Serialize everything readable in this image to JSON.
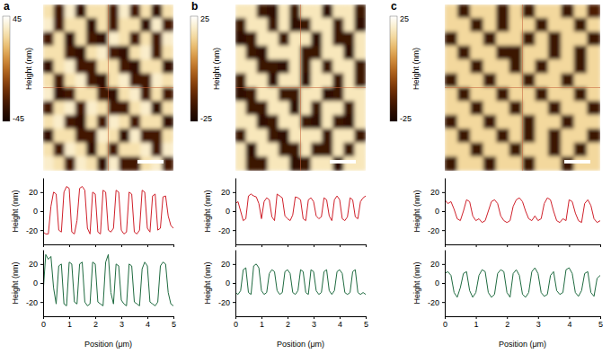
{
  "chart_data": [
    {
      "type": "heatmap",
      "title": "a",
      "color_label": "Height (nm)",
      "color_range": [
        -45,
        45
      ],
      "color_ticks": [
        45,
        -45
      ],
      "cells": [
        [
          30,
          -30,
          35,
          -35,
          30,
          30,
          -30,
          35,
          -30,
          30,
          -35,
          30
        ],
        [
          35,
          -30,
          30,
          30,
          -35,
          30,
          -30,
          30,
          30,
          -35,
          35,
          -30
        ],
        [
          -30,
          30,
          -35,
          30,
          -30,
          -35,
          35,
          30,
          -30,
          30,
          -30,
          35
        ],
        [
          30,
          30,
          -30,
          -35,
          30,
          35,
          -30,
          -35,
          30,
          35,
          -30,
          30
        ],
        [
          -35,
          30,
          35,
          -30,
          -30,
          30,
          30,
          -30,
          -35,
          30,
          30,
          -35
        ],
        [
          30,
          -30,
          30,
          35,
          -30,
          -35,
          30,
          35,
          -30,
          -30,
          35,
          30
        ],
        [
          35,
          -35,
          -30,
          30,
          30,
          -30,
          -35,
          30,
          35,
          -30,
          30,
          -30
        ],
        [
          -30,
          30,
          35,
          -30,
          35,
          30,
          -30,
          -30,
          30,
          35,
          -35,
          30
        ],
        [
          30,
          35,
          -30,
          -35,
          30,
          -30,
          35,
          30,
          -30,
          30,
          30,
          -35
        ],
        [
          -35,
          30,
          30,
          -30,
          -30,
          35,
          30,
          -35,
          35,
          -30,
          -30,
          30
        ],
        [
          30,
          -30,
          35,
          30,
          -35,
          30,
          -30,
          30,
          30,
          35,
          -30,
          35
        ],
        [
          35,
          30,
          -30,
          35,
          30,
          -35,
          35,
          -30,
          -30,
          30,
          35,
          -30
        ]
      ]
    },
    {
      "type": "line",
      "xlabel": "Position (μm)",
      "ylabel": "Height (nm)",
      "xlim": [
        0,
        5
      ],
      "xticks": [
        0,
        1,
        2,
        3,
        4,
        5
      ],
      "ylim": [
        -35,
        35
      ],
      "yticks": [
        -20,
        0,
        20
      ],
      "x": [
        0,
        0.1,
        0.2,
        0.3,
        0.4,
        0.5,
        0.6,
        0.7,
        0.8,
        0.9,
        1,
        1.1,
        1.2,
        1.3,
        1.4,
        1.5,
        1.6,
        1.7,
        1.8,
        1.9,
        2,
        2.1,
        2.2,
        2.3,
        2.4,
        2.5,
        2.6,
        2.7,
        2.8,
        2.9,
        3,
        3.1,
        3.2,
        3.3,
        3.4,
        3.5,
        3.6,
        3.7,
        3.8,
        3.9,
        4,
        4.1,
        4.2,
        4.3,
        4.4,
        4.5,
        4.6,
        4.7,
        4.8,
        4.9,
        5
      ],
      "series": [
        {
          "color": "#d0202a",
          "values": [
            -22,
            -24,
            -24,
            5,
            20,
            18,
            -20,
            -22,
            20,
            26,
            24,
            -22,
            -24,
            -10,
            24,
            26,
            22,
            -18,
            -24,
            20,
            18,
            -22,
            -24,
            22,
            20,
            -20,
            -22,
            -18,
            22,
            20,
            -20,
            -24,
            -22,
            20,
            18,
            -22,
            -24,
            -20,
            22,
            20,
            -18,
            -22,
            16,
            18,
            -20,
            -18,
            15,
            16,
            -5,
            -15,
            -18
          ]
        },
        {
          "color": "#1f6b40",
          "values": [
            -10,
            30,
            25,
            28,
            -5,
            -22,
            18,
            20,
            -22,
            -24,
            22,
            20,
            -20,
            -22,
            20,
            22,
            -20,
            -24,
            -22,
            22,
            20,
            -20,
            -22,
            -24,
            22,
            30,
            -10,
            -22,
            20,
            18,
            -18,
            -22,
            -24,
            20,
            18,
            -20,
            -22,
            -24,
            15,
            22,
            18,
            -20,
            -22,
            -24,
            -20,
            18,
            22,
            20,
            -10,
            -22,
            -24
          ]
        }
      ]
    },
    {
      "type": "heatmap",
      "title": "b",
      "color_label": "Height (nm)",
      "color_range": [
        -25,
        25
      ],
      "color_ticks": [
        25,
        -25
      ],
      "cells": [
        [
          18,
          18,
          -18,
          -20,
          18,
          -18,
          18,
          18,
          -20,
          18,
          18,
          -18
        ],
        [
          -18,
          18,
          18,
          -18,
          18,
          -20,
          -18,
          18,
          18,
          -18,
          18,
          -20
        ],
        [
          -20,
          -18,
          18,
          18,
          -18,
          18,
          18,
          -20,
          18,
          -18,
          -18,
          18
        ],
        [
          18,
          -18,
          -20,
          18,
          18,
          18,
          -18,
          -18,
          18,
          18,
          -20,
          18
        ],
        [
          18,
          18,
          -18,
          -18,
          -20,
          18,
          -18,
          18,
          -18,
          18,
          18,
          -18
        ],
        [
          -18,
          18,
          18,
          -20,
          18,
          18,
          -20,
          18,
          18,
          -18,
          18,
          -18
        ],
        [
          -20,
          -18,
          18,
          18,
          -18,
          -18,
          18,
          18,
          -20,
          -18,
          18,
          18
        ],
        [
          18,
          -18,
          -18,
          18,
          18,
          -20,
          18,
          -18,
          18,
          18,
          -18,
          18
        ],
        [
          18,
          18,
          -20,
          -18,
          18,
          18,
          -18,
          -20,
          18,
          -18,
          -20,
          18
        ],
        [
          -18,
          18,
          18,
          -18,
          -20,
          18,
          18,
          18,
          -18,
          18,
          18,
          -18
        ],
        [
          18,
          -20,
          18,
          18,
          -18,
          -18,
          18,
          -18,
          -18,
          18,
          -18,
          18
        ],
        [
          18,
          -18,
          -18,
          18,
          18,
          -20,
          -18,
          18,
          18,
          -20,
          18,
          18
        ]
      ]
    },
    {
      "type": "line",
      "xlabel": "Position (μm)",
      "ylabel": "Height (nm)",
      "xlim": [
        0,
        5
      ],
      "xticks": [
        0,
        1,
        2,
        3,
        4,
        5
      ],
      "ylim": [
        -35,
        35
      ],
      "yticks": [
        -20,
        0,
        20
      ],
      "x": [
        0,
        0.1,
        0.2,
        0.3,
        0.4,
        0.5,
        0.6,
        0.7,
        0.8,
        0.9,
        1,
        1.1,
        1.2,
        1.3,
        1.4,
        1.5,
        1.6,
        1.7,
        1.8,
        1.9,
        2,
        2.1,
        2.2,
        2.3,
        2.4,
        2.5,
        2.6,
        2.7,
        2.8,
        2.9,
        3,
        3.1,
        3.2,
        3.3,
        3.4,
        3.5,
        3.6,
        3.7,
        3.8,
        3.9,
        4,
        4.1,
        4.2,
        4.3,
        4.4,
        4.5,
        4.6,
        4.7,
        4.8,
        4.9,
        5
      ],
      "series": [
        {
          "color": "#d0202a",
          "values": [
            8,
            10,
            0,
            -10,
            -8,
            16,
            18,
            16,
            15,
            8,
            -8,
            10,
            14,
            12,
            -6,
            -10,
            18,
            16,
            14,
            -5,
            -8,
            -10,
            -4,
            15,
            14,
            12,
            -8,
            -10,
            12,
            14,
            10,
            -5,
            -8,
            -6,
            14,
            12,
            -5,
            -10,
            12,
            16,
            12,
            -8,
            -10,
            -6,
            14,
            12,
            -6,
            -8,
            10,
            14,
            16
          ]
        },
        {
          "color": "#1f6b40",
          "values": [
            -10,
            -12,
            -8,
            14,
            16,
            -10,
            -12,
            18,
            20,
            16,
            -8,
            -12,
            -10,
            10,
            14,
            12,
            -8,
            -12,
            -10,
            12,
            14,
            10,
            -10,
            -12,
            -8,
            14,
            12,
            -10,
            -12,
            14,
            12,
            -8,
            -12,
            -10,
            12,
            14,
            -8,
            -12,
            -8,
            12,
            14,
            10,
            -10,
            -12,
            -10,
            12,
            14,
            -10,
            -12,
            -10,
            -12
          ]
        }
      ]
    },
    {
      "type": "heatmap",
      "title": "c",
      "color_label": "Height (nm)",
      "color_range": [
        -25,
        25
      ],
      "color_ticks": [
        25,
        -25
      ],
      "cells": [
        [
          15,
          -18,
          15,
          15,
          -18,
          15,
          -18,
          15,
          15,
          -18,
          15,
          -15
        ],
        [
          15,
          15,
          -18,
          15,
          -18,
          15,
          15,
          -18,
          15,
          15,
          -18,
          15
        ],
        [
          -18,
          15,
          15,
          -18,
          15,
          15,
          -18,
          15,
          -18,
          15,
          15,
          -18
        ],
        [
          15,
          -18,
          15,
          15,
          -18,
          -18,
          15,
          15,
          -18,
          15,
          -18,
          15
        ],
        [
          15,
          15,
          -18,
          15,
          15,
          -18,
          15,
          -18,
          15,
          15,
          -18,
          15
        ],
        [
          -18,
          15,
          15,
          -18,
          15,
          15,
          -18,
          15,
          15,
          -18,
          15,
          15
        ],
        [
          15,
          -18,
          15,
          15,
          -18,
          15,
          15,
          -18,
          15,
          15,
          -18,
          15
        ],
        [
          15,
          15,
          -18,
          15,
          15,
          -18,
          15,
          15,
          -18,
          15,
          15,
          -18
        ],
        [
          -18,
          15,
          15,
          -18,
          15,
          15,
          -18,
          15,
          15,
          -18,
          15,
          15
        ],
        [
          15,
          -18,
          15,
          15,
          -18,
          15,
          -18,
          15,
          -18,
          15,
          15,
          -18
        ],
        [
          15,
          15,
          -18,
          15,
          15,
          -18,
          15,
          15,
          -18,
          15,
          -18,
          15
        ],
        [
          -18,
          15,
          15,
          -18,
          15,
          15,
          -18,
          15,
          15,
          -18,
          15,
          15
        ]
      ]
    },
    {
      "type": "line",
      "xlabel": "Position (μm)",
      "ylabel": "Height (nm)",
      "xlim": [
        0,
        5
      ],
      "xticks": [
        0,
        1,
        2,
        3,
        4,
        5
      ],
      "ylim": [
        -35,
        35
      ],
      "yticks": [
        -20,
        0,
        20
      ],
      "x": [
        0,
        0.1,
        0.2,
        0.3,
        0.4,
        0.5,
        0.6,
        0.7,
        0.8,
        0.9,
        1,
        1.1,
        1.2,
        1.3,
        1.4,
        1.5,
        1.6,
        1.7,
        1.8,
        1.9,
        2,
        2.1,
        2.2,
        2.3,
        2.4,
        2.5,
        2.6,
        2.7,
        2.8,
        2.9,
        3,
        3.1,
        3.2,
        3.3,
        3.4,
        3.5,
        3.6,
        3.7,
        3.8,
        3.9,
        4,
        4.1,
        4.2,
        4.3,
        4.4,
        4.5,
        4.6,
        4.7,
        4.8,
        4.9,
        5
      ],
      "series": [
        {
          "color": "#d0202a",
          "values": [
            12,
            8,
            10,
            2,
            -8,
            -10,
            0,
            12,
            10,
            -5,
            -10,
            -8,
            -12,
            -10,
            0,
            10,
            12,
            8,
            -5,
            -10,
            -12,
            -10,
            5,
            12,
            14,
            10,
            0,
            -8,
            -10,
            -5,
            -10,
            -8,
            8,
            14,
            12,
            0,
            -10,
            -12,
            -8,
            -10,
            12,
            10,
            -2,
            -10,
            -12,
            8,
            12,
            6,
            -8,
            -12,
            -10
          ]
        },
        {
          "color": "#1f6b40",
          "values": [
            10,
            12,
            8,
            -10,
            -15,
            -5,
            10,
            12,
            -8,
            -15,
            -10,
            8,
            14,
            12,
            -10,
            -15,
            -12,
            10,
            14,
            12,
            -10,
            -15,
            10,
            14,
            8,
            -12,
            -15,
            -10,
            12,
            16,
            10,
            -10,
            -14,
            -12,
            8,
            12,
            -8,
            -12,
            -10,
            14,
            16,
            10,
            -10,
            -14,
            -8,
            10,
            12,
            -10,
            -14,
            5,
            8
          ]
        }
      ]
    }
  ]
}
